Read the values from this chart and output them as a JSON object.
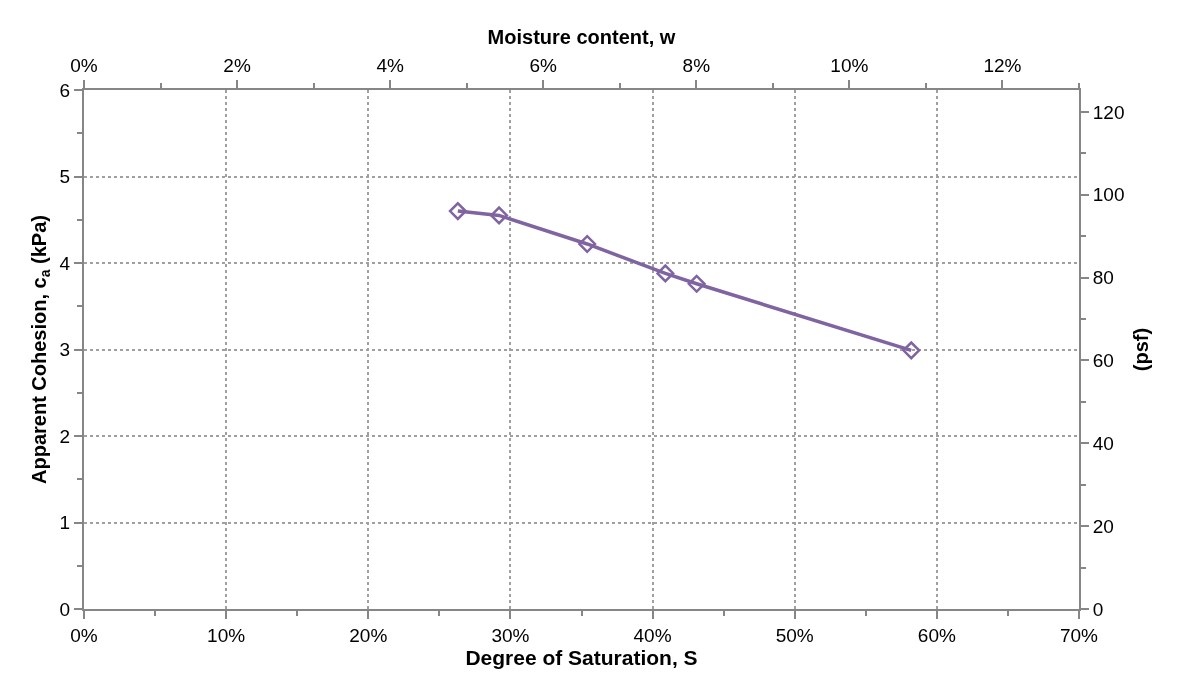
{
  "chart_data": {
    "type": "line",
    "xlabel": "Degree of Saturation, S",
    "ylabel": "Apparent Cohesion, c$_{a}$ (kPa)",
    "y2label": "(psf)",
    "x2label": "Moisture content, w",
    "x": [
      26.3,
      29.2,
      35.4,
      40.9,
      43.1,
      58.2
    ],
    "series": [
      {
        "color": "#8064a2",
        "values": [
          4.6,
          4.55,
          4.22,
          3.88,
          3.76,
          2.99
        ]
      }
    ],
    "xlim": [
      0,
      70
    ],
    "xticks": [
      {
        "value": 0,
        "label": "0%"
      },
      {
        "value": 10,
        "label": "10%"
      },
      {
        "value": 20,
        "label": "20%"
      },
      {
        "value": 30,
        "label": "30%"
      },
      {
        "value": 40,
        "label": "40%"
      },
      {
        "value": 50,
        "label": "50%"
      },
      {
        "value": 60,
        "label": "60%"
      },
      {
        "value": 70,
        "label": "70%"
      }
    ],
    "ylim": [
      0,
      6
    ],
    "yticks": [
      0,
      1,
      2,
      3,
      4,
      5,
      6
    ],
    "y2lim": [
      0,
      125.3
    ],
    "y2ticks": [
      0,
      20,
      40,
      60,
      80,
      100,
      120
    ],
    "x2lim": [
      0,
      13
    ],
    "x2ticks": [
      {
        "value": 0,
        "label": "0%"
      },
      {
        "value": 2,
        "label": "2%"
      },
      {
        "value": 4,
        "label": "4%"
      },
      {
        "value": 6,
        "label": "6%"
      },
      {
        "value": 8,
        "label": "8%"
      },
      {
        "value": 10,
        "label": "10%"
      },
      {
        "value": 12,
        "label": "12%"
      }
    ],
    "grid": true,
    "marker": "diamond",
    "line_style": "solid"
  }
}
